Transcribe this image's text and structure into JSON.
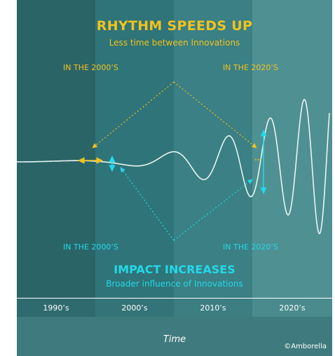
{
  "header": {
    "title": "RHYTHM SPEEDS UP",
    "subtitle": "Less time between Innovations"
  },
  "rhythm_labels": {
    "left": "IN THE 2000’S",
    "right": "IN THE 2020’S"
  },
  "impact_labels": {
    "left": "IN THE 2000’S",
    "right": "IN THE 2020’S"
  },
  "footer_titles": {
    "title": "IMPACT INCREASES",
    "subtitle": "Broader influence of Innovations"
  },
  "decades": [
    "1990’s",
    "2000’s",
    "2010’s",
    "2020’s"
  ],
  "axis_label": "Time",
  "credit": "©Amborella",
  "colors": {
    "rhythm": "#f2c21b",
    "impact": "#24d8e8",
    "band_1990s": "#2a6467",
    "band_2000s": "#2f7478",
    "band_2010s": "#3a8084",
    "band_2020s": "#4f9092"
  }
}
